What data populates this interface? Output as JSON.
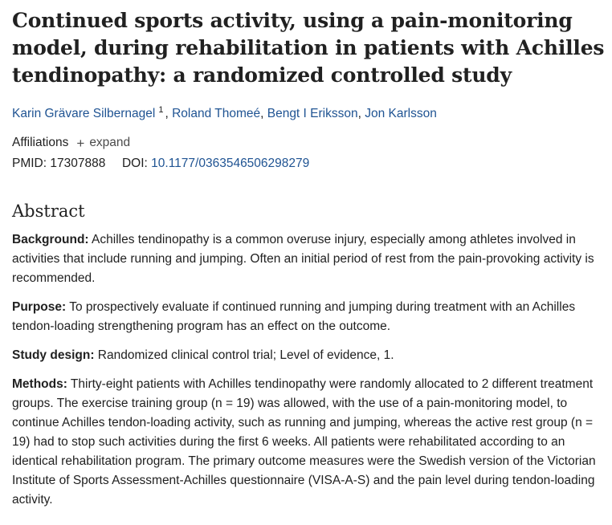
{
  "article": {
    "title": "Continued sports activity, using a pain-monitoring model, during rehabilitation in patients with Achilles tendinopathy: a randomized controlled study",
    "authors": [
      {
        "name": "Karin Grävare Silbernagel",
        "sup": "1"
      },
      {
        "name": "Roland Thomeé"
      },
      {
        "name": "Bengt I Eriksson"
      },
      {
        "name": "Jon Karlsson"
      }
    ],
    "affiliations_label": "Affiliations",
    "expand_label": "expand",
    "pmid_label": "PMID:",
    "pmid": "17307888",
    "doi_label": "DOI:",
    "doi": "10.1177/0363546506298279"
  },
  "abstract": {
    "heading": "Abstract",
    "sections": [
      {
        "label": "Background:",
        "text": "Achilles tendinopathy is a common overuse injury, especially among athletes involved in activities that include running and jumping. Often an initial period of rest from the pain-provoking activity is recommended."
      },
      {
        "label": "Purpose:",
        "text": "To prospectively evaluate if continued running and jumping during treatment with an Achilles tendon-loading strengthening program has an effect on the outcome."
      },
      {
        "label": "Study design:",
        "text": "Randomized clinical control trial; Level of evidence, 1."
      },
      {
        "label": "Methods:",
        "text": "Thirty-eight patients with Achilles tendinopathy were randomly allocated to 2 different treatment groups. The exercise training group (n = 19) was allowed, with the use of a pain-monitoring model, to continue Achilles tendon-loading activity, such as running and jumping, whereas the active rest group (n = 19) had to stop such activities during the first 6 weeks. All patients were rehabilitated according to an identical rehabilitation program. The primary outcome measures were the Swedish version of the Victorian Institute of Sports Assessment-Achilles questionnaire (VISA-A-S) and the pain level during tendon-loading activity."
      }
    ]
  }
}
